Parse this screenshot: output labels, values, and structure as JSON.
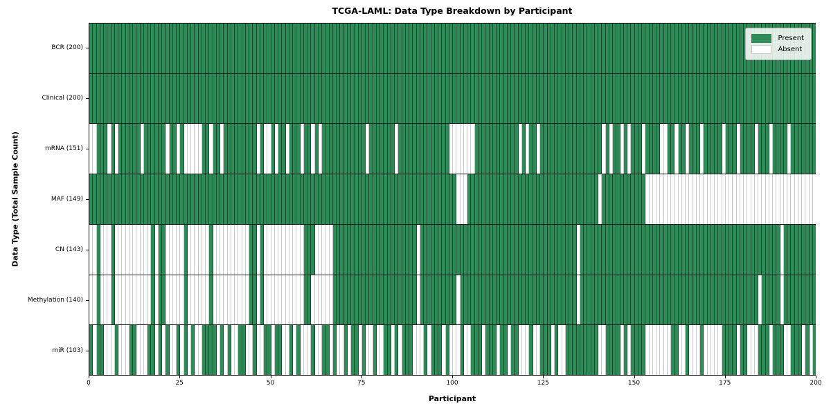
{
  "figure": {
    "title": "TCGA-LAML: Data Type Breakdown by Participant",
    "xlabel": "Participant",
    "ylabel": "Data Type (Total Sample Count)"
  },
  "legend": {
    "items": [
      {
        "key": "present",
        "label": "Present",
        "color": "#2E8B57"
      },
      {
        "key": "absent",
        "label": "Absent",
        "color": "#FFFFFF"
      }
    ]
  },
  "colors": {
    "present": "#2E8B57",
    "absent": "#FFFFFF",
    "cell_edge_on_green": "#0F3C23",
    "cell_edge_on_white": "#C9C9C9",
    "frame": "#000000"
  },
  "x_axis": {
    "min": 0,
    "max": 200,
    "ticks": [
      0,
      25,
      50,
      75,
      100,
      125,
      150,
      175,
      200
    ]
  },
  "chart_data": {
    "type": "heatmap",
    "n_participants": 200,
    "cell_values": {
      "present": 1,
      "absent": 0
    },
    "rows": [
      {
        "data_type": "BCR",
        "label": "BCR (200)",
        "present_count": 200,
        "absent_count": 0,
        "absent_ranges": []
      },
      {
        "data_type": "Clinical",
        "label": "Clinical (200)",
        "present_count": 200,
        "absent_count": 0,
        "absent_ranges": []
      },
      {
        "data_type": "mRNA",
        "label": "mRNA (151)",
        "present_count": 151,
        "absent_count": 49,
        "absent_ranges": [
          [
            0,
            1
          ],
          5,
          7,
          14,
          21,
          24,
          [
            26,
            30
          ],
          33,
          36,
          46,
          [
            48,
            49
          ],
          51,
          54,
          58,
          61,
          63,
          76,
          84,
          [
            99,
            105
          ],
          118,
          120,
          123,
          141,
          143,
          146,
          148,
          152,
          [
            157,
            158
          ],
          161,
          164,
          168,
          174,
          178,
          183,
          187,
          192
        ]
      },
      {
        "data_type": "MAF",
        "label": "MAF (149)",
        "present_count": 149,
        "absent_count": 51,
        "absent_ranges": [
          [
            101,
            103
          ],
          140,
          [
            153,
            199
          ]
        ]
      },
      {
        "data_type": "CN",
        "label": "CN (143)",
        "present_count": 143,
        "absent_count": 57,
        "absent_ranges": [
          [
            0,
            1
          ],
          [
            3,
            5
          ],
          [
            7,
            16
          ],
          18,
          [
            21,
            25
          ],
          [
            27,
            32
          ],
          [
            34,
            43
          ],
          46,
          [
            48,
            58
          ],
          [
            62,
            66
          ],
          90,
          134,
          190
        ]
      },
      {
        "data_type": "Methylation",
        "label": "Methylation (140)",
        "present_count": 140,
        "absent_count": 60,
        "absent_ranges": [
          [
            0,
            1
          ],
          [
            3,
            5
          ],
          [
            7,
            16
          ],
          18,
          [
            21,
            25
          ],
          [
            27,
            32
          ],
          [
            34,
            43
          ],
          46,
          [
            48,
            58
          ],
          [
            61,
            66
          ],
          90,
          101,
          134,
          184,
          190
        ]
      },
      {
        "data_type": "miR",
        "label": "miR (103)",
        "present_count": 103,
        "absent_count": 97,
        "absent_ranges": [
          1,
          [
            4,
            6
          ],
          [
            8,
            10
          ],
          [
            13,
            15
          ],
          18,
          20,
          [
            22,
            23
          ],
          25,
          27,
          [
            29,
            30
          ],
          35,
          37,
          [
            39,
            40
          ],
          [
            43,
            44
          ],
          [
            46,
            47
          ],
          50,
          [
            53,
            54
          ],
          56,
          [
            58,
            60
          ],
          [
            62,
            63
          ],
          66,
          [
            68,
            69
          ],
          71,
          74,
          [
            76,
            77
          ],
          [
            79,
            80
          ],
          83,
          85,
          [
            89,
            91
          ],
          93,
          97,
          [
            99,
            101
          ],
          [
            103,
            104
          ],
          108,
          112,
          115,
          [
            118,
            120
          ],
          [
            122,
            123
          ],
          127,
          [
            129,
            130
          ],
          [
            140,
            141
          ],
          146,
          148,
          [
            153,
            159
          ],
          [
            162,
            163
          ],
          [
            165,
            167
          ],
          [
            169,
            173
          ],
          178,
          [
            181,
            183
          ],
          187,
          [
            191,
            192
          ],
          196,
          198
        ]
      }
    ]
  }
}
